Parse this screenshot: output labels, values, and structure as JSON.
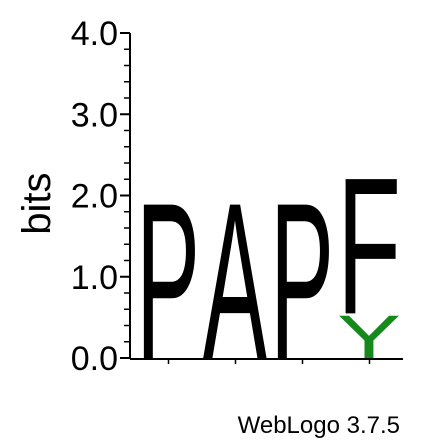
{
  "chart_data": {
    "type": "sequence-logo",
    "ylabel": "bits",
    "ylim": [
      0,
      4.0
    ],
    "yticks": [
      "0.0",
      "1.0",
      "2.0",
      "3.0",
      "4.0"
    ],
    "positions": [
      {
        "position": 1,
        "letters": [
          {
            "letter": "P",
            "height": 2.0,
            "color": "#000000"
          }
        ]
      },
      {
        "position": 2,
        "letters": [
          {
            "letter": "A",
            "height": 2.0,
            "color": "#000000"
          }
        ]
      },
      {
        "position": 3,
        "letters": [
          {
            "letter": "P",
            "height": 2.0,
            "color": "#000000"
          }
        ]
      },
      {
        "position": 4,
        "letters": [
          {
            "letter": "F",
            "height": 1.75,
            "color": "#000000"
          },
          {
            "letter": "Y",
            "height": 0.55,
            "color": "#15891a"
          }
        ]
      }
    ]
  },
  "footer": {
    "credit": "WebLogo 3.7.5"
  }
}
